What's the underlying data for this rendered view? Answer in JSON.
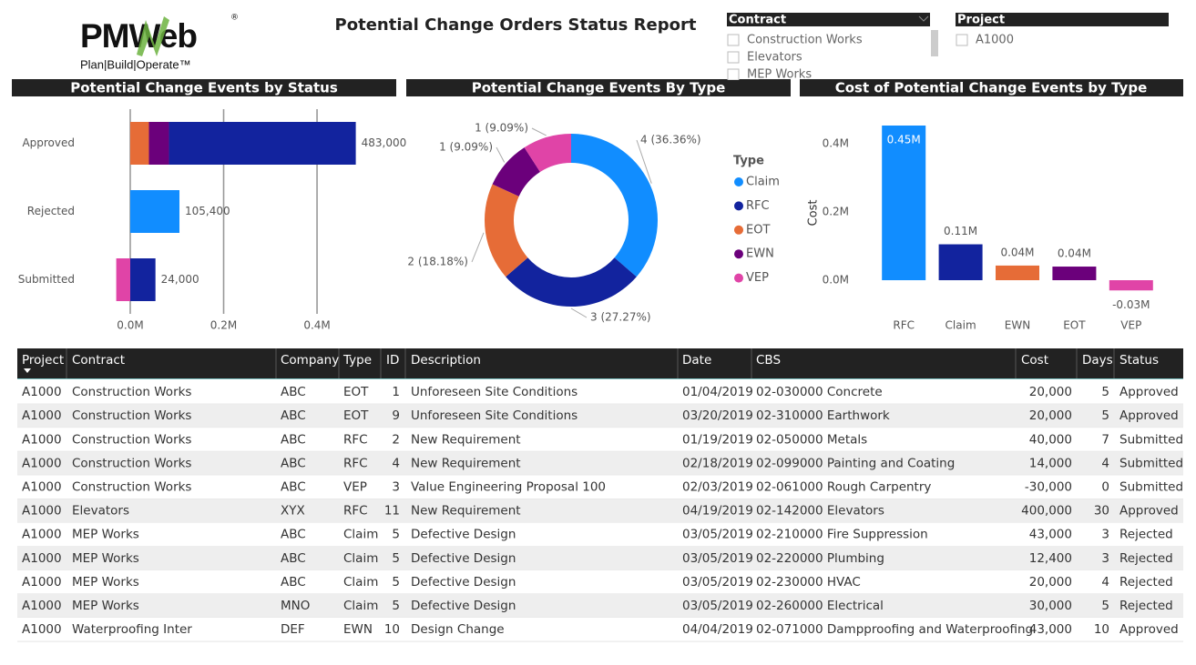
{
  "logo": {
    "name": "PMWeb",
    "mark": "®",
    "tagline": "Plan|Build|Operate™"
  },
  "title": "Potential Change Orders Status Report",
  "slicers": [
    {
      "title": "Contract",
      "items": [
        "Construction Works",
        "Elevators",
        "MEP Works"
      ]
    },
    {
      "title": "Project",
      "items": [
        "A1000"
      ]
    }
  ],
  "chart_data": [
    {
      "type": "bar",
      "orientation": "horizontal",
      "stacked": true,
      "title": "Potential Change Events by Status",
      "categories": [
        "Approved",
        "Rejected",
        "Submitted"
      ],
      "series": [
        {
          "color": "#e66c37",
          "values": [
            40000,
            null,
            null
          ]
        },
        {
          "color": "#6b007b",
          "values": [
            43000,
            null,
            null
          ]
        },
        {
          "color": "#12239e",
          "values": [
            400000,
            null,
            54000
          ]
        },
        {
          "color": "#118dff",
          "values": [
            null,
            105400,
            null
          ]
        },
        {
          "color": "#e044a7",
          "values": [
            null,
            null,
            -30000
          ]
        }
      ],
      "totals": [
        483000,
        105400,
        24000
      ],
      "total_labels": [
        "483,000",
        "105,400",
        "24,000"
      ],
      "xlim": [
        -30000,
        483000
      ],
      "xticks": [
        {
          "value": 0,
          "label": "0.0M"
        },
        {
          "value": 200000,
          "label": "0.2M"
        },
        {
          "value": 400000,
          "label": "0.4M"
        }
      ],
      "grid": true
    },
    {
      "type": "donut",
      "title": "Potential Change Events By Type",
      "legend_title": "Type",
      "categories": [
        "Claim",
        "RFC",
        "EOT",
        "EWN",
        "VEP"
      ],
      "values": [
        4,
        3,
        2,
        1,
        1
      ],
      "value_labels": [
        "4 (36.36%)",
        "3 (27.27%)",
        "2 (18.18%)",
        "1 (9.09%)",
        "1 (9.09%)"
      ],
      "colors": [
        "#118dff",
        "#12239e",
        "#e66c37",
        "#6b007b",
        "#e044a7"
      ]
    },
    {
      "type": "bar",
      "orientation": "vertical",
      "title": "Cost of Potential Change Events by Type",
      "ylabel": "Cost",
      "categories": [
        "RFC",
        "Claim",
        "EWN",
        "EOT",
        "VEP"
      ],
      "values": [
        454000,
        105400,
        43000,
        40000,
        -30000
      ],
      "value_labels": [
        "0.45M",
        "0.11M",
        "0.04M",
        "0.04M",
        "-0.03M"
      ],
      "colors": [
        "#118dff",
        "#12239e",
        "#e66c37",
        "#6b007b",
        "#e044a7"
      ],
      "ylim": [
        -30000,
        454000
      ],
      "yticks": [
        {
          "value": 0,
          "label": "0.0M"
        },
        {
          "value": 200000,
          "label": "0.2M"
        },
        {
          "value": 400000,
          "label": "0.4M"
        }
      ]
    }
  ],
  "table": {
    "columns": [
      "Project",
      "Contract",
      "Company",
      "Type",
      "ID",
      "Description",
      "Date",
      "CBS",
      "Cost",
      "Days",
      "Status"
    ],
    "rows": [
      [
        "A1000",
        "Construction Works",
        "ABC",
        "EOT",
        "1",
        "Unforeseen Site Conditions",
        "01/04/2019",
        "02-030000 Concrete",
        "20,000",
        "5",
        "Approved"
      ],
      [
        "A1000",
        "Construction Works",
        "ABC",
        "EOT",
        "9",
        "Unforeseen Site Conditions",
        "03/20/2019",
        "02-310000 Earthwork",
        "20,000",
        "5",
        "Approved"
      ],
      [
        "A1000",
        "Construction Works",
        "ABC",
        "RFC",
        "2",
        "New Requirement",
        "01/19/2019",
        "02-050000 Metals",
        "40,000",
        "7",
        "Submitted"
      ],
      [
        "A1000",
        "Construction Works",
        "ABC",
        "RFC",
        "4",
        "New Requirement",
        "02/18/2019",
        "02-099000 Painting and Coating",
        "14,000",
        "4",
        "Submitted"
      ],
      [
        "A1000",
        "Construction Works",
        "ABC",
        "VEP",
        "3",
        "Value Engineering Proposal 100",
        "02/03/2019",
        "02-061000 Rough Carpentry",
        "-30,000",
        "0",
        "Submitted"
      ],
      [
        "A1000",
        "Elevators",
        "XYX",
        "RFC",
        "11",
        "New Requirement",
        "04/19/2019",
        "02-142000 Elevators",
        "400,000",
        "30",
        "Approved"
      ],
      [
        "A1000",
        "MEP Works",
        "ABC",
        "Claim",
        "5",
        "Defective Design",
        "03/05/2019",
        "02-210000 Fire Suppression",
        "43,000",
        "3",
        "Rejected"
      ],
      [
        "A1000",
        "MEP Works",
        "ABC",
        "Claim",
        "5",
        "Defective Design",
        "03/05/2019",
        "02-220000 Plumbing",
        "12,400",
        "3",
        "Rejected"
      ],
      [
        "A1000",
        "MEP Works",
        "ABC",
        "Claim",
        "5",
        "Defective Design",
        "03/05/2019",
        "02-230000 HVAC",
        "20,000",
        "4",
        "Rejected"
      ],
      [
        "A1000",
        "MEP Works",
        "MNO",
        "Claim",
        "5",
        "Defective Design",
        "03/05/2019",
        "02-260000 Electrical",
        "30,000",
        "5",
        "Rejected"
      ],
      [
        "A1000",
        "Waterproofing Inter",
        "DEF",
        "EWN",
        "10",
        "Design Change",
        "04/04/2019",
        "02-071000 Dampproofing and Waterproofing",
        "43,000",
        "10",
        "Approved"
      ]
    ]
  }
}
